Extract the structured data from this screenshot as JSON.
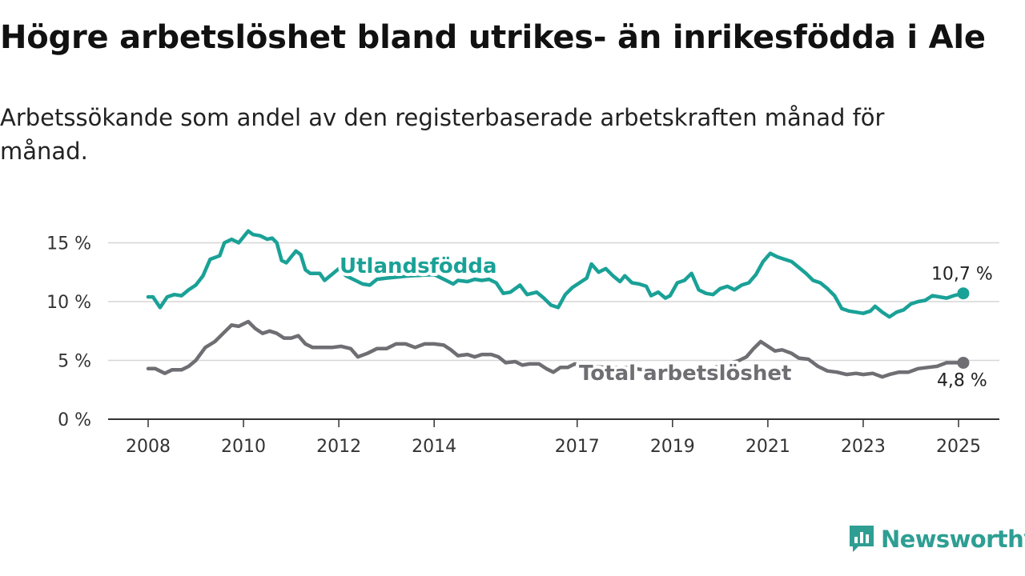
{
  "header": {
    "title": "Högre arbetslöshet bland utrikes- än inrikesfödda i Ale",
    "subtitle": "Arbetssökande som andel av den registerbaserade arbetskraften månad för månad."
  },
  "brand": {
    "name": "Newsworthy",
    "icon": "newsworthy-chart-icon",
    "color": "#2e9e93"
  },
  "chart_data": {
    "type": "line",
    "xlim": [
      2008,
      2025.5
    ],
    "ylim": [
      0,
      16
    ],
    "x_ticks": [
      {
        "value": 2008,
        "label": "2008"
      },
      {
        "value": 2010,
        "label": "2010"
      },
      {
        "value": 2012,
        "label": "2012"
      },
      {
        "value": 2014,
        "label": "2014"
      },
      {
        "value": 2017,
        "label": "2017"
      },
      {
        "value": 2019,
        "label": "2019"
      },
      {
        "value": 2021,
        "label": "2021"
      },
      {
        "value": 2023,
        "label": "2023"
      },
      {
        "value": 2025,
        "label": "2025"
      }
    ],
    "y_ticks": [
      {
        "value": 0,
        "label": "0 %"
      },
      {
        "value": 5,
        "label": "5 %"
      },
      {
        "value": 10,
        "label": "10 %"
      },
      {
        "value": 15,
        "label": "15 %"
      }
    ],
    "grid": true,
    "series": [
      {
        "name": "Utlandsfödda",
        "color": "#1aa197",
        "end_label": "10,7 %",
        "points": [
          [
            2008.0,
            10.4
          ],
          [
            2008.1,
            10.4
          ],
          [
            2008.25,
            9.5
          ],
          [
            2008.4,
            10.4
          ],
          [
            2008.55,
            10.6
          ],
          [
            2008.7,
            10.5
          ],
          [
            2008.85,
            11.0
          ],
          [
            2009.0,
            11.4
          ],
          [
            2009.15,
            12.2
          ],
          [
            2009.3,
            13.6
          ],
          [
            2009.5,
            13.9
          ],
          [
            2009.6,
            15.0
          ],
          [
            2009.75,
            15.3
          ],
          [
            2009.9,
            15.0
          ],
          [
            2010.0,
            15.5
          ],
          [
            2010.1,
            16.0
          ],
          [
            2010.2,
            15.7
          ],
          [
            2010.35,
            15.6
          ],
          [
            2010.5,
            15.3
          ],
          [
            2010.6,
            15.4
          ],
          [
            2010.7,
            15.0
          ],
          [
            2010.8,
            13.5
          ],
          [
            2010.9,
            13.3
          ],
          [
            2011.0,
            13.8
          ],
          [
            2011.1,
            14.3
          ],
          [
            2011.2,
            14.0
          ],
          [
            2011.3,
            12.7
          ],
          [
            2011.4,
            12.4
          ],
          [
            2011.6,
            12.4
          ],
          [
            2011.7,
            11.8
          ],
          [
            2011.85,
            12.3
          ],
          [
            2012.0,
            12.8
          ],
          [
            2012.15,
            12.2
          ],
          [
            2012.3,
            11.9
          ],
          [
            2012.5,
            11.5
          ],
          [
            2012.65,
            11.4
          ],
          [
            2012.8,
            11.9
          ],
          [
            2013.0,
            12.0
          ],
          [
            2013.5,
            12.2
          ],
          [
            2014.0,
            12.3
          ],
          [
            2014.25,
            11.8
          ],
          [
            2014.4,
            11.5
          ],
          [
            2014.5,
            11.8
          ],
          [
            2014.7,
            11.7
          ],
          [
            2014.85,
            11.9
          ],
          [
            2015.0,
            11.8
          ],
          [
            2015.15,
            11.9
          ],
          [
            2015.3,
            11.6
          ],
          [
            2015.45,
            10.7
          ],
          [
            2015.6,
            10.8
          ],
          [
            2015.8,
            11.4
          ],
          [
            2015.95,
            10.6
          ],
          [
            2016.15,
            10.8
          ],
          [
            2016.3,
            10.3
          ],
          [
            2016.45,
            9.7
          ],
          [
            2016.6,
            9.5
          ],
          [
            2016.75,
            10.6
          ],
          [
            2016.9,
            11.2
          ],
          [
            2017.05,
            11.6
          ],
          [
            2017.2,
            12.0
          ],
          [
            2017.3,
            13.2
          ],
          [
            2017.45,
            12.5
          ],
          [
            2017.6,
            12.8
          ],
          [
            2017.75,
            12.2
          ],
          [
            2017.9,
            11.7
          ],
          [
            2018.0,
            12.2
          ],
          [
            2018.15,
            11.6
          ],
          [
            2018.3,
            11.5
          ],
          [
            2018.45,
            11.3
          ],
          [
            2018.55,
            10.5
          ],
          [
            2018.7,
            10.8
          ],
          [
            2018.85,
            10.3
          ],
          [
            2018.95,
            10.5
          ],
          [
            2019.1,
            11.6
          ],
          [
            2019.25,
            11.8
          ],
          [
            2019.4,
            12.4
          ],
          [
            2019.55,
            11.0
          ],
          [
            2019.7,
            10.7
          ],
          [
            2019.85,
            10.6
          ],
          [
            2020.0,
            11.1
          ],
          [
            2020.15,
            11.3
          ],
          [
            2020.3,
            11.0
          ],
          [
            2020.45,
            11.4
          ],
          [
            2020.6,
            11.6
          ],
          [
            2020.75,
            12.3
          ],
          [
            2020.9,
            13.4
          ],
          [
            2021.05,
            14.1
          ],
          [
            2021.2,
            13.8
          ],
          [
            2021.35,
            13.6
          ],
          [
            2021.5,
            13.4
          ],
          [
            2021.65,
            12.9
          ],
          [
            2021.8,
            12.4
          ],
          [
            2021.95,
            11.8
          ],
          [
            2022.1,
            11.6
          ],
          [
            2022.25,
            11.1
          ],
          [
            2022.4,
            10.5
          ],
          [
            2022.55,
            9.4
          ],
          [
            2022.7,
            9.2
          ],
          [
            2022.85,
            9.1
          ],
          [
            2023.0,
            9.0
          ],
          [
            2023.15,
            9.2
          ],
          [
            2023.25,
            9.6
          ],
          [
            2023.4,
            9.1
          ],
          [
            2023.55,
            8.7
          ],
          [
            2023.7,
            9.1
          ],
          [
            2023.85,
            9.3
          ],
          [
            2024.0,
            9.8
          ],
          [
            2024.15,
            10.0
          ],
          [
            2024.3,
            10.1
          ],
          [
            2024.45,
            10.5
          ],
          [
            2024.6,
            10.4
          ],
          [
            2024.75,
            10.3
          ],
          [
            2024.9,
            10.5
          ],
          [
            2025.1,
            10.7
          ]
        ]
      },
      {
        "name": "Total arbetslöshet",
        "color": "#6e6e73",
        "end_label": "4,8 %",
        "points": [
          [
            2008.0,
            4.3
          ],
          [
            2008.15,
            4.3
          ],
          [
            2008.35,
            3.9
          ],
          [
            2008.5,
            4.2
          ],
          [
            2008.7,
            4.2
          ],
          [
            2008.85,
            4.5
          ],
          [
            2009.0,
            5.0
          ],
          [
            2009.2,
            6.1
          ],
          [
            2009.4,
            6.6
          ],
          [
            2009.6,
            7.4
          ],
          [
            2009.75,
            8.0
          ],
          [
            2009.9,
            7.9
          ],
          [
            2010.0,
            8.1
          ],
          [
            2010.1,
            8.3
          ],
          [
            2010.25,
            7.7
          ],
          [
            2010.4,
            7.3
          ],
          [
            2010.55,
            7.5
          ],
          [
            2010.7,
            7.3
          ],
          [
            2010.85,
            6.9
          ],
          [
            2011.0,
            6.9
          ],
          [
            2011.15,
            7.1
          ],
          [
            2011.3,
            6.4
          ],
          [
            2011.45,
            6.1
          ],
          [
            2011.65,
            6.1
          ],
          [
            2011.85,
            6.1
          ],
          [
            2012.05,
            6.2
          ],
          [
            2012.25,
            6.0
          ],
          [
            2012.4,
            5.3
          ],
          [
            2012.6,
            5.6
          ],
          [
            2012.8,
            6.0
          ],
          [
            2013.0,
            6.0
          ],
          [
            2013.2,
            6.4
          ],
          [
            2013.4,
            6.4
          ],
          [
            2013.6,
            6.1
          ],
          [
            2013.8,
            6.4
          ],
          [
            2014.0,
            6.4
          ],
          [
            2014.2,
            6.3
          ],
          [
            2014.35,
            5.9
          ],
          [
            2014.5,
            5.4
          ],
          [
            2014.7,
            5.5
          ],
          [
            2014.85,
            5.3
          ],
          [
            2015.0,
            5.5
          ],
          [
            2015.2,
            5.5
          ],
          [
            2015.35,
            5.3
          ],
          [
            2015.5,
            4.8
          ],
          [
            2015.7,
            4.9
          ],
          [
            2015.85,
            4.6
          ],
          [
            2016.0,
            4.7
          ],
          [
            2016.2,
            4.7
          ],
          [
            2016.35,
            4.3
          ],
          [
            2016.5,
            4.0
          ],
          [
            2016.65,
            4.4
          ],
          [
            2016.8,
            4.4
          ],
          [
            2016.95,
            4.7
          ],
          [
            2017.2,
            4.5
          ],
          [
            2017.6,
            4.4
          ],
          [
            2018.0,
            4.4
          ],
          [
            2018.4,
            4.2
          ],
          [
            2018.8,
            4.1
          ],
          [
            2019.2,
            4.0
          ],
          [
            2019.6,
            4.2
          ],
          [
            2020.0,
            4.5
          ],
          [
            2020.4,
            5.0
          ],
          [
            2020.55,
            5.3
          ],
          [
            2020.7,
            6.0
          ],
          [
            2020.85,
            6.6
          ],
          [
            2021.0,
            6.2
          ],
          [
            2021.15,
            5.8
          ],
          [
            2021.3,
            5.9
          ],
          [
            2021.5,
            5.6
          ],
          [
            2021.65,
            5.2
          ],
          [
            2021.85,
            5.1
          ],
          [
            2022.05,
            4.5
          ],
          [
            2022.25,
            4.1
          ],
          [
            2022.45,
            4.0
          ],
          [
            2022.65,
            3.8
          ],
          [
            2022.85,
            3.9
          ],
          [
            2023.0,
            3.8
          ],
          [
            2023.2,
            3.9
          ],
          [
            2023.4,
            3.6
          ],
          [
            2023.55,
            3.8
          ],
          [
            2023.75,
            4.0
          ],
          [
            2023.95,
            4.0
          ],
          [
            2024.15,
            4.3
          ],
          [
            2024.35,
            4.4
          ],
          [
            2024.55,
            4.5
          ],
          [
            2024.75,
            4.8
          ],
          [
            2024.95,
            4.8
          ],
          [
            2025.1,
            4.8
          ]
        ]
      }
    ]
  }
}
